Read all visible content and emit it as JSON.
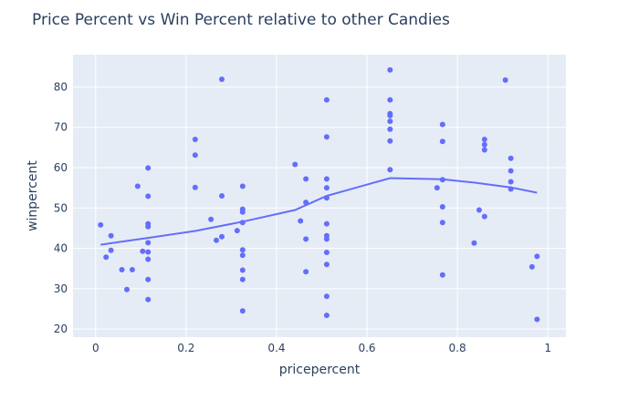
{
  "chart_data": {
    "type": "scatter",
    "title": "Price Percent vs Win Percent relative to other Candies",
    "xlabel": "pricepercent",
    "ylabel": "winpercent",
    "xlim": [
      -0.05,
      1.04
    ],
    "ylim": [
      18,
      88
    ],
    "x_ticks": [
      0,
      0.2,
      0.4,
      0.6,
      0.8,
      1
    ],
    "x_tick_labels": [
      "0",
      "0.2",
      "0.4",
      "0.6",
      "0.8",
      "1"
    ],
    "y_ticks": [
      20,
      30,
      40,
      50,
      60,
      70,
      80
    ],
    "y_tick_labels": [
      "20",
      "30",
      "40",
      "50",
      "60",
      "70",
      "80"
    ],
    "grid": true,
    "colors": {
      "marker": "#636efa",
      "plot_bg": "#e5ecf6",
      "grid": "#ffffff",
      "text": "#2a3f5f"
    },
    "points": [
      [
        0.011,
        45.8
      ],
      [
        0.023,
        37.8
      ],
      [
        0.034,
        43.1
      ],
      [
        0.034,
        39.5
      ],
      [
        0.058,
        34.7
      ],
      [
        0.069,
        29.8
      ],
      [
        0.081,
        34.7
      ],
      [
        0.093,
        55.4
      ],
      [
        0.104,
        39.3
      ],
      [
        0.116,
        59.9
      ],
      [
        0.116,
        52.9
      ],
      [
        0.116,
        46.1
      ],
      [
        0.116,
        45.4
      ],
      [
        0.116,
        41.4
      ],
      [
        0.116,
        39.1
      ],
      [
        0.116,
        37.3
      ],
      [
        0.116,
        32.3
      ],
      [
        0.116,
        27.3
      ],
      [
        0.22,
        67.0
      ],
      [
        0.22,
        63.1
      ],
      [
        0.22,
        55.1
      ],
      [
        0.255,
        47.2
      ],
      [
        0.267,
        42.0
      ],
      [
        0.279,
        81.9
      ],
      [
        0.279,
        53.0
      ],
      [
        0.279,
        42.9
      ],
      [
        0.313,
        44.4
      ],
      [
        0.325,
        55.4
      ],
      [
        0.325,
        49.7
      ],
      [
        0.325,
        49.0
      ],
      [
        0.325,
        46.4
      ],
      [
        0.325,
        39.6
      ],
      [
        0.325,
        38.3
      ],
      [
        0.325,
        34.6
      ],
      [
        0.325,
        32.3
      ],
      [
        0.325,
        24.5
      ],
      [
        0.441,
        60.8
      ],
      [
        0.453,
        46.8
      ],
      [
        0.465,
        57.2
      ],
      [
        0.465,
        51.4
      ],
      [
        0.465,
        42.3
      ],
      [
        0.465,
        34.2
      ],
      [
        0.511,
        76.8
      ],
      [
        0.511,
        67.6
      ],
      [
        0.511,
        57.2
      ],
      [
        0.511,
        55.0
      ],
      [
        0.511,
        52.5
      ],
      [
        0.511,
        46.1
      ],
      [
        0.511,
        43.1
      ],
      [
        0.511,
        42.3
      ],
      [
        0.511,
        39.0
      ],
      [
        0.511,
        36.0
      ],
      [
        0.511,
        28.1
      ],
      [
        0.511,
        23.4
      ],
      [
        0.651,
        84.2
      ],
      [
        0.651,
        76.8
      ],
      [
        0.651,
        73.4
      ],
      [
        0.651,
        72.9
      ],
      [
        0.651,
        71.5
      ],
      [
        0.651,
        69.5
      ],
      [
        0.651,
        66.6
      ],
      [
        0.651,
        59.5
      ],
      [
        0.755,
        55.0
      ],
      [
        0.767,
        70.7
      ],
      [
        0.767,
        66.5
      ],
      [
        0.767,
        57.0
      ],
      [
        0.767,
        50.3
      ],
      [
        0.767,
        46.4
      ],
      [
        0.767,
        33.4
      ],
      [
        0.837,
        41.3
      ],
      [
        0.848,
        49.5
      ],
      [
        0.86,
        67.0
      ],
      [
        0.86,
        65.7
      ],
      [
        0.86,
        64.4
      ],
      [
        0.86,
        47.9
      ],
      [
        0.906,
        81.7
      ],
      [
        0.918,
        62.3
      ],
      [
        0.918,
        59.2
      ],
      [
        0.918,
        56.5
      ],
      [
        0.918,
        54.7
      ],
      [
        0.965,
        35.4
      ],
      [
        0.976,
        38.0
      ],
      [
        0.976,
        22.4
      ]
    ],
    "trendline": [
      [
        0.011,
        40.9
      ],
      [
        0.116,
        42.6
      ],
      [
        0.22,
        44.3
      ],
      [
        0.325,
        46.6
      ],
      [
        0.441,
        49.5
      ],
      [
        0.511,
        53.0
      ],
      [
        0.651,
        57.4
      ],
      [
        0.767,
        57.1
      ],
      [
        0.837,
        56.3
      ],
      [
        0.918,
        55.1
      ],
      [
        0.976,
        53.8
      ]
    ]
  }
}
